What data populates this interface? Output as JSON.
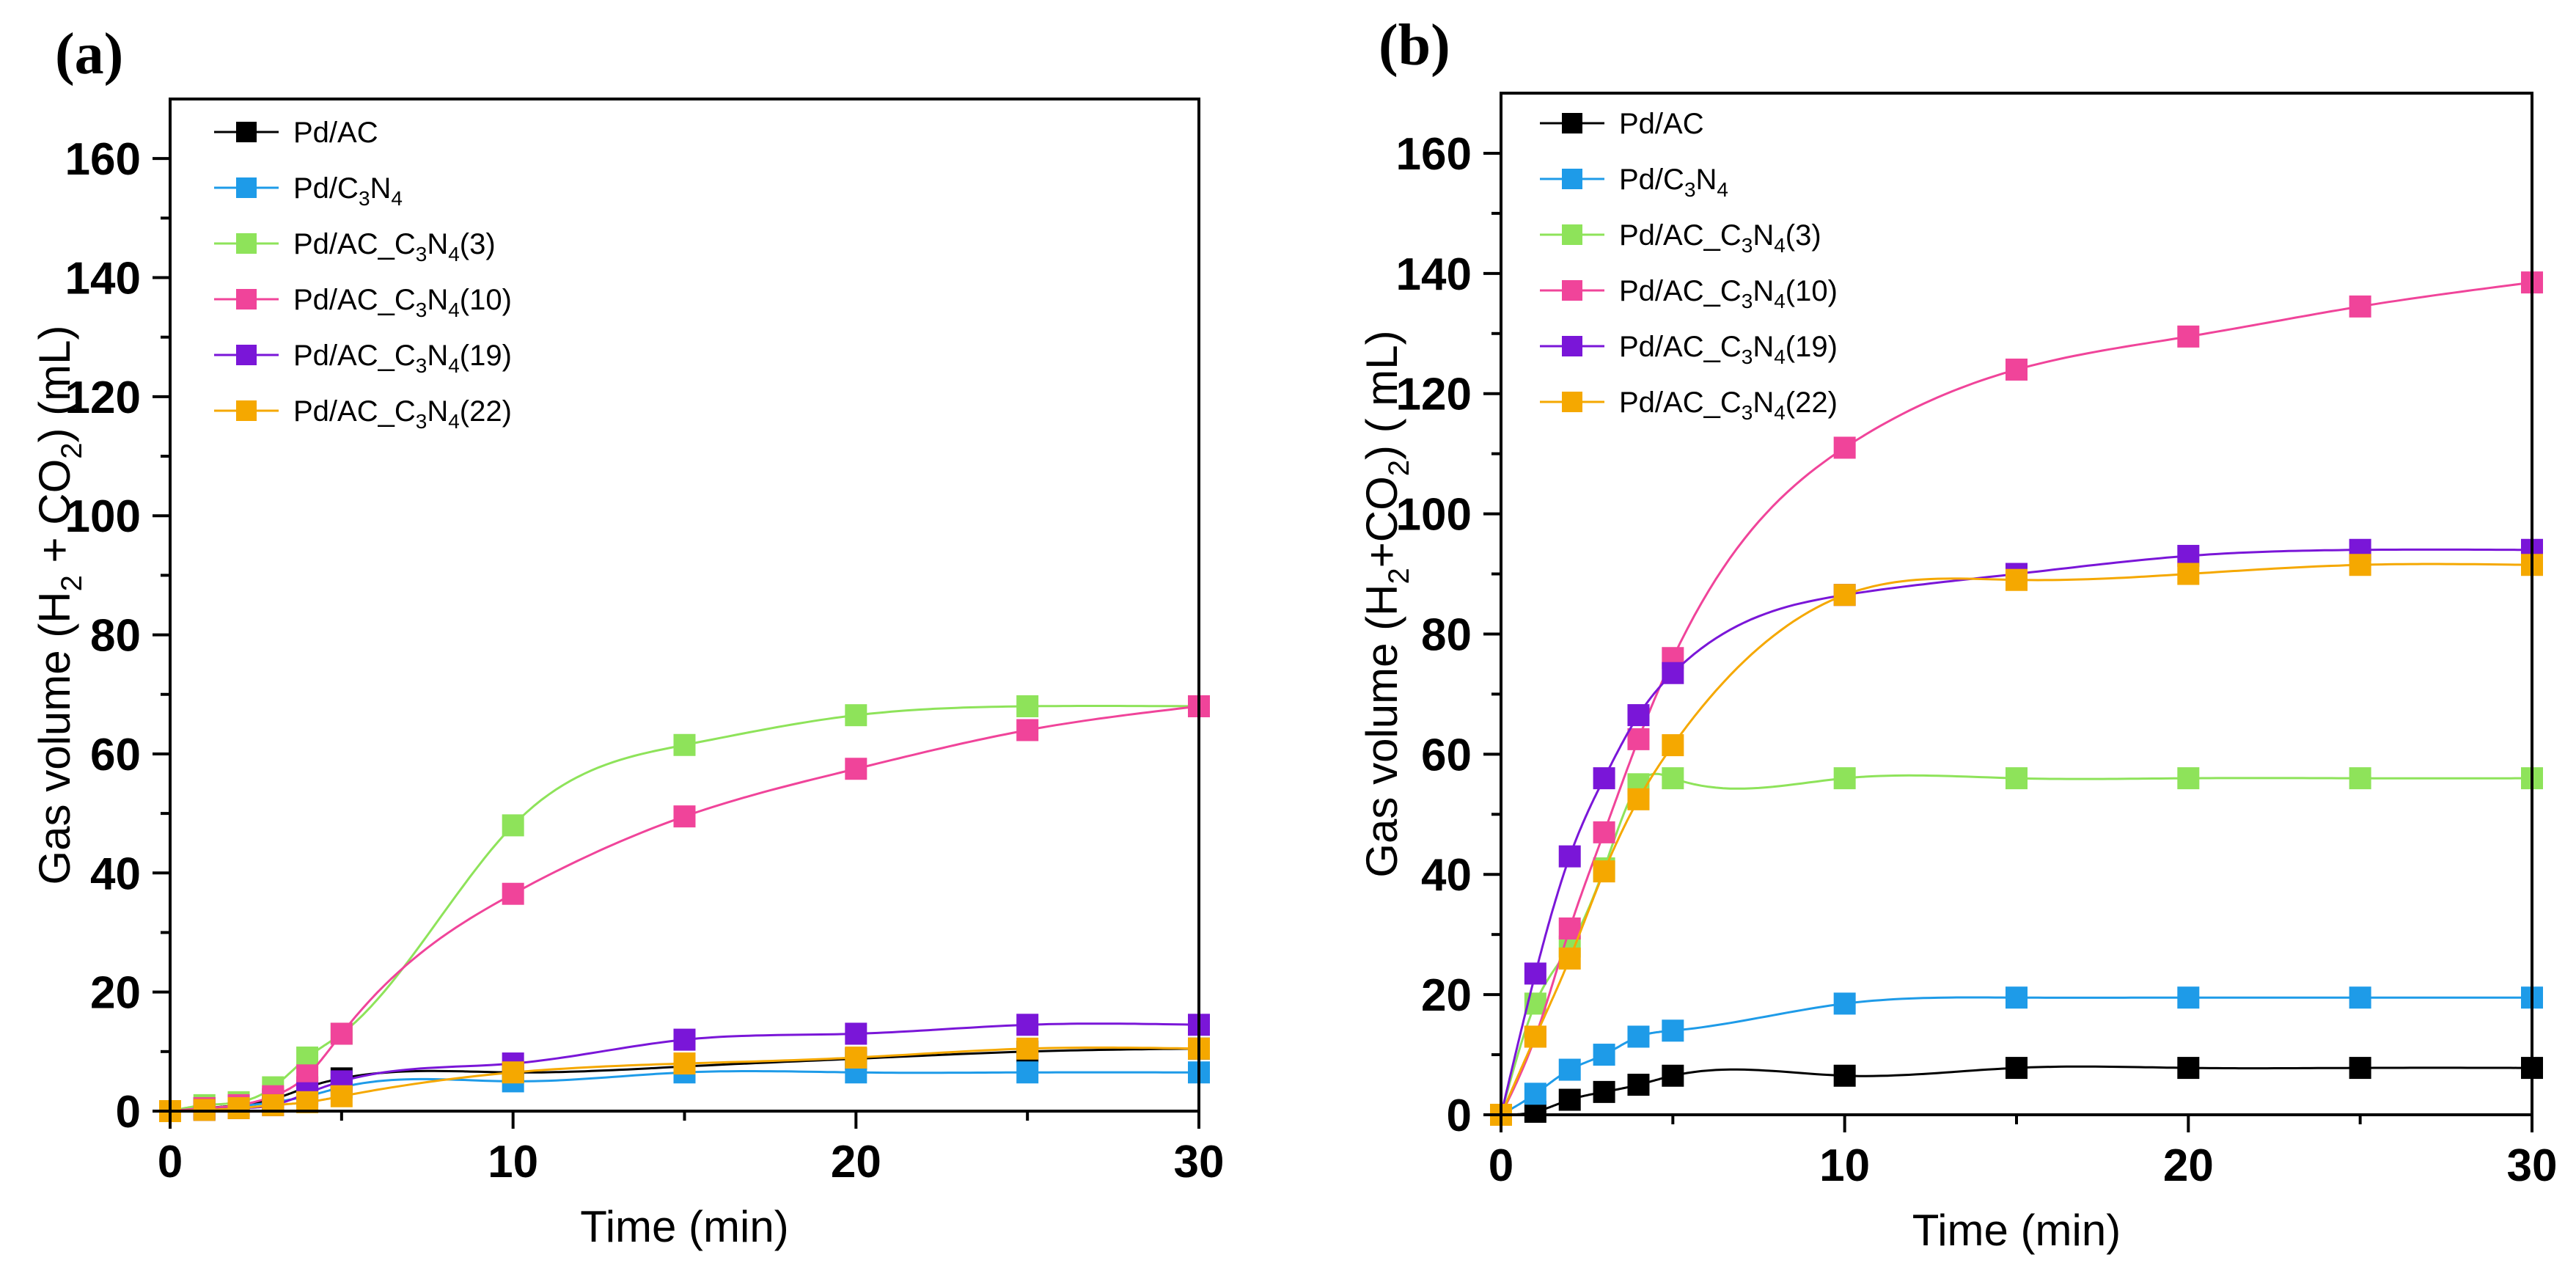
{
  "figure": {
    "panels": [
      {
        "label": "(a)",
        "chart_data": {
          "type": "line",
          "title": "",
          "xlabel": "Time (min)",
          "ylabel_parts": [
            "Gas volume (H",
            "2",
            " + CO",
            "2",
            ") (mL)"
          ],
          "xlim": [
            0,
            30
          ],
          "ylim": [
            0,
            170
          ],
          "xticks": [
            0,
            10,
            20,
            30
          ],
          "yticks": [
            0,
            20,
            40,
            60,
            80,
            100,
            120,
            140,
            160
          ],
          "grid": false,
          "legend_position": "top-left",
          "x": [
            0,
            1,
            2,
            3,
            4,
            5,
            10,
            15,
            20,
            25,
            30
          ],
          "series": [
            {
              "name": "Pd/AC",
              "label_parts": [
                "Pd/AC"
              ],
              "color": "#000000",
              "values": [
                0,
                0.5,
                1,
                2,
                4,
                5.5,
                6.5,
                7.5,
                8.8,
                10,
                10.5
              ]
            },
            {
              "name": "Pd/C3N4",
              "label_parts": [
                "Pd/C",
                "3",
                "N",
                "4"
              ],
              "color": "#1e9be8",
              "values": [
                0,
                0.3,
                0.8,
                1.5,
                2.5,
                4,
                5,
                6.5,
                6.5,
                6.5,
                6.5
              ]
            },
            {
              "name": "Pd/AC_C3N4(3)",
              "label_parts": [
                "Pd/AC_C",
                "3",
                "N",
                "4",
                "(3)"
              ],
              "color": "#8ee35a",
              "values": [
                0,
                1,
                1.5,
                4,
                9,
                13,
                48,
                61.5,
                66.5,
                68,
                68
              ]
            },
            {
              "name": "Pd/AC_C3N4(10)",
              "label_parts": [
                "Pd/AC_C",
                "3",
                "N",
                "4",
                "(10)"
              ],
              "color": "#f0449a",
              "values": [
                0,
                0.5,
                1,
                2.5,
                6,
                13,
                36.5,
                49.5,
                57.5,
                64,
                68
              ]
            },
            {
              "name": "Pd/AC_C3N4(19)",
              "label_parts": [
                "Pd/AC_C",
                "3",
                "N",
                "4",
                "(19)"
              ],
              "color": "#7a16d8",
              "values": [
                0,
                0.2,
                0.5,
                1,
                3,
                5,
                8,
                12,
                13,
                14.5,
                14.5
              ]
            },
            {
              "name": "Pd/AC_C3N4(22)",
              "label_parts": [
                "Pd/AC_C",
                "3",
                "N",
                "4",
                "(22)"
              ],
              "color": "#f5a800",
              "values": [
                0,
                0.2,
                0.5,
                1,
                1.5,
                2.5,
                6.5,
                8,
                9,
                10.5,
                10.5
              ]
            }
          ]
        }
      },
      {
        "label": "(b)",
        "chart_data": {
          "type": "line",
          "title": "",
          "xlabel": "Time (min)",
          "ylabel_parts": [
            "Gas volume (H",
            "2",
            "+CO",
            "2",
            ") ( mL)"
          ],
          "xlim": [
            0,
            30
          ],
          "ylim": [
            0,
            170
          ],
          "xticks": [
            0,
            10,
            20,
            30
          ],
          "yticks": [
            0,
            20,
            40,
            60,
            80,
            100,
            120,
            140,
            160
          ],
          "grid": false,
          "legend_position": "top-left",
          "x": [
            0,
            1,
            2,
            3,
            4,
            5,
            10,
            15,
            20,
            25,
            30
          ],
          "series": [
            {
              "name": "Pd/AC",
              "label_parts": [
                "Pd/AC"
              ],
              "color": "#000000",
              "values": [
                0,
                0.5,
                2.5,
                3.8,
                5,
                6.5,
                6.5,
                7.8,
                7.8,
                7.8,
                7.8
              ]
            },
            {
              "name": "Pd/C3N4",
              "label_parts": [
                "Pd/C",
                "3",
                "N",
                "4"
              ],
              "color": "#1e9be8",
              "values": [
                0,
                3.5,
                7.5,
                10,
                13,
                14,
                18.5,
                19.5,
                19.5,
                19.5,
                19.5
              ]
            },
            {
              "name": "Pd/AC_C3N4(3)",
              "label_parts": [
                "Pd/AC_C",
                "3",
                "N",
                "4",
                "(3)"
              ],
              "color": "#8ee35a",
              "values": [
                0,
                18.5,
                28,
                41,
                55,
                56,
                56,
                56,
                56,
                56,
                56
              ]
            },
            {
              "name": "Pd/AC_C3N4(10)",
              "label_parts": [
                "Pd/AC_C",
                "3",
                "N",
                "4",
                "(10)"
              ],
              "color": "#f0449a",
              "values": [
                0,
                13,
                31,
                47,
                62.5,
                76,
                111,
                124,
                129.5,
                134.5,
                138.5
              ]
            },
            {
              "name": "Pd/AC_C3N4(19)",
              "label_parts": [
                "Pd/AC_C",
                "3",
                "N",
                "4",
                "(19)"
              ],
              "color": "#7a16d8",
              "values": [
                0,
                23.5,
                43,
                56,
                66.5,
                73.5,
                86.5,
                90,
                93,
                94,
                94
              ]
            },
            {
              "name": "Pd/AC_C3N4(22)",
              "label_parts": [
                "Pd/AC_C",
                "3",
                "N",
                "4",
                "(22)"
              ],
              "color": "#f5a800",
              "values": [
                0,
                13,
                26,
                40.5,
                52.5,
                61.5,
                86.5,
                89,
                90,
                91.5,
                91.5
              ]
            }
          ]
        }
      }
    ]
  }
}
